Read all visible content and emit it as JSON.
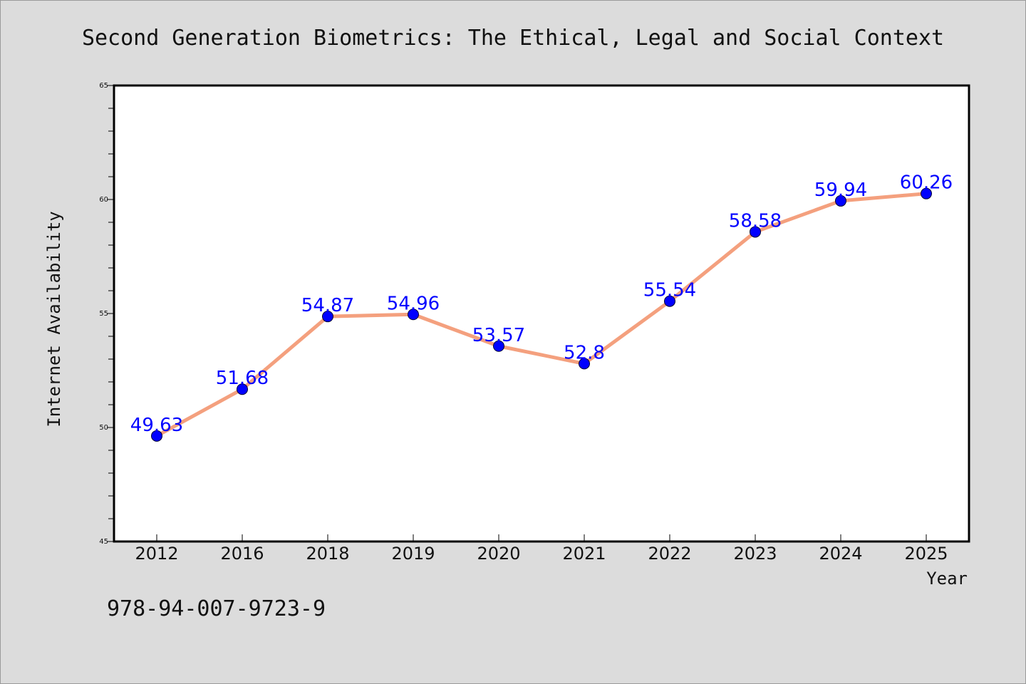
{
  "chart_data": {
    "type": "line",
    "title": "Second Generation Biometrics: The Ethical, Legal and Social Context",
    "xlabel": "Year",
    "ylabel": "Internet Availability",
    "categories": [
      "2012",
      "2016",
      "2018",
      "2019",
      "2020",
      "2021",
      "2022",
      "2023",
      "2024",
      "2025"
    ],
    "values": [
      49.63,
      51.68,
      54.87,
      54.96,
      53.57,
      52.8,
      55.54,
      58.58,
      59.94,
      60.26
    ],
    "data_labels": [
      "49.63",
      "51.68",
      "54.87",
      "54.96",
      "53.57",
      "52.8",
      "55.54",
      "58.58",
      "59.94",
      "60.26"
    ],
    "ylim": [
      45,
      65
    ],
    "yticks": [
      "45",
      "50",
      "55",
      "60",
      "65"
    ],
    "grid": false,
    "legend": "none",
    "line_color": "#f4a07e",
    "marker_color": "#0000ff",
    "label_color": "#0000ff"
  },
  "footer": {
    "isbn": "978-94-007-9723-9"
  }
}
